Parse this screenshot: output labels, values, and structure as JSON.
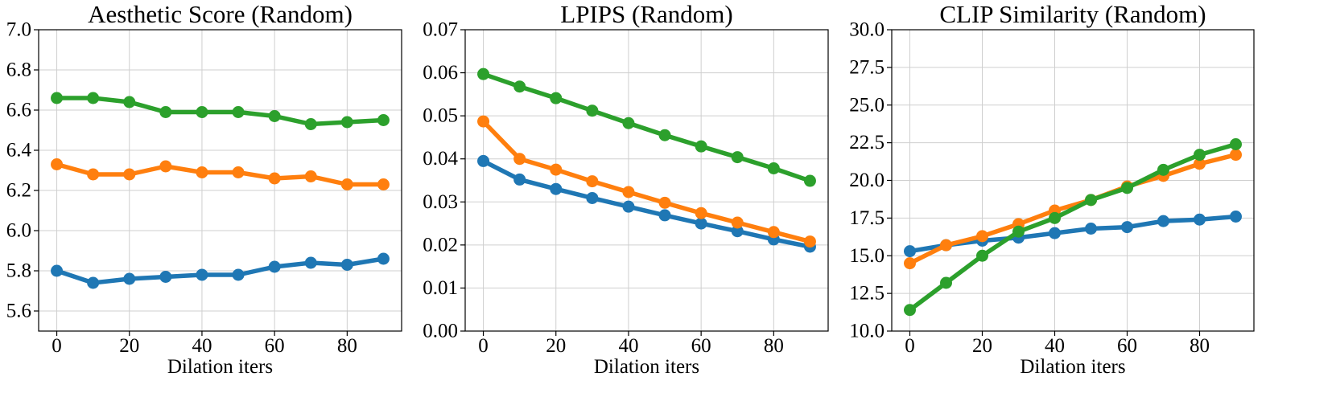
{
  "chart_data": [
    {
      "type": "line",
      "title": "Aesthetic Score (Random)",
      "xlabel": "Dilation iters",
      "ylabel": "",
      "grid": true,
      "x": [
        0,
        10,
        20,
        30,
        40,
        50,
        60,
        70,
        80,
        90
      ],
      "xlim": [
        -5,
        95
      ],
      "ylim": [
        5.5,
        7.0
      ],
      "xticks": [
        0,
        20,
        40,
        60,
        80
      ],
      "xtick_labels": [
        "0",
        "20",
        "40",
        "60",
        "80"
      ],
      "yticks": [
        5.6,
        5.8,
        6.0,
        6.2,
        6.4,
        6.6,
        6.8,
        7.0
      ],
      "ytick_labels": [
        "5.6",
        "5.8",
        "6.0",
        "6.2",
        "6.4",
        "6.6",
        "6.8",
        "7.0"
      ],
      "series": [
        {
          "name": "blue",
          "color": "#1f77b4",
          "values": [
            5.8,
            5.74,
            5.76,
            5.77,
            5.78,
            5.78,
            5.82,
            5.84,
            5.83,
            5.86
          ]
        },
        {
          "name": "orange",
          "color": "#ff7f0e",
          "values": [
            6.33,
            6.28,
            6.28,
            6.32,
            6.29,
            6.29,
            6.26,
            6.27,
            6.23,
            6.23
          ]
        },
        {
          "name": "green",
          "color": "#2ca02c",
          "values": [
            6.66,
            6.66,
            6.64,
            6.59,
            6.59,
            6.59,
            6.57,
            6.53,
            6.54,
            6.55
          ]
        }
      ]
    },
    {
      "type": "line",
      "title": "LPIPS (Random)",
      "xlabel": "Dilation iters",
      "ylabel": "",
      "grid": true,
      "x": [
        0,
        10,
        20,
        30,
        40,
        50,
        60,
        70,
        80,
        90
      ],
      "xlim": [
        -5,
        95
      ],
      "ylim": [
        0.0,
        0.07
      ],
      "xticks": [
        0,
        20,
        40,
        60,
        80
      ],
      "xtick_labels": [
        "0",
        "20",
        "40",
        "60",
        "80"
      ],
      "yticks": [
        0.0,
        0.01,
        0.02,
        0.03,
        0.04,
        0.05,
        0.06,
        0.07
      ],
      "ytick_labels": [
        "0.00",
        "0.01",
        "0.02",
        "0.03",
        "0.04",
        "0.05",
        "0.06",
        "0.07"
      ],
      "series": [
        {
          "name": "blue",
          "color": "#1f77b4",
          "values": [
            0.0395,
            0.0352,
            0.033,
            0.0309,
            0.0289,
            0.0269,
            0.025,
            0.0232,
            0.0213,
            0.0196
          ]
        },
        {
          "name": "orange",
          "color": "#ff7f0e",
          "values": [
            0.0487,
            0.04,
            0.0375,
            0.0348,
            0.0323,
            0.0298,
            0.0274,
            0.0252,
            0.023,
            0.0208
          ]
        },
        {
          "name": "green",
          "color": "#2ca02c",
          "values": [
            0.0597,
            0.0568,
            0.0541,
            0.0512,
            0.0483,
            0.0455,
            0.0429,
            0.0404,
            0.0378,
            0.0349
          ]
        }
      ]
    },
    {
      "type": "line",
      "title": "CLIP Similarity (Random)",
      "xlabel": "Dilation iters",
      "ylabel": "",
      "grid": true,
      "x": [
        0,
        10,
        20,
        30,
        40,
        50,
        60,
        70,
        80,
        90
      ],
      "xlim": [
        -5,
        95
      ],
      "ylim": [
        10.0,
        30.0
      ],
      "xticks": [
        0,
        20,
        40,
        60,
        80
      ],
      "xtick_labels": [
        "0",
        "20",
        "40",
        "60",
        "80"
      ],
      "yticks": [
        10.0,
        12.5,
        15.0,
        17.5,
        20.0,
        22.5,
        25.0,
        27.5,
        30.0
      ],
      "ytick_labels": [
        "10.0",
        "12.5",
        "15.0",
        "17.5",
        "20.0",
        "22.5",
        "25.0",
        "27.5",
        "30.0"
      ],
      "series": [
        {
          "name": "blue",
          "color": "#1f77b4",
          "values": [
            15.3,
            15.7,
            16.0,
            16.2,
            16.5,
            16.8,
            16.9,
            17.3,
            17.4,
            17.6
          ]
        },
        {
          "name": "orange",
          "color": "#ff7f0e",
          "values": [
            14.5,
            15.7,
            16.3,
            17.1,
            18.0,
            18.7,
            19.6,
            20.3,
            21.1,
            21.7
          ]
        },
        {
          "name": "green",
          "color": "#2ca02c",
          "values": [
            11.4,
            13.2,
            15.0,
            16.6,
            17.5,
            18.7,
            19.5,
            20.7,
            21.7,
            22.4
          ]
        }
      ]
    }
  ]
}
